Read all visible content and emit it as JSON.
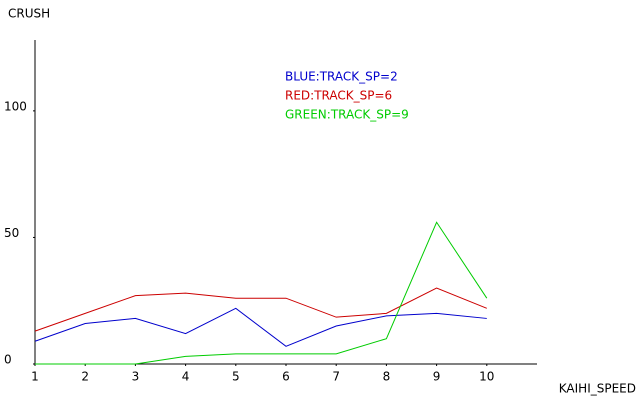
{
  "chart_data": {
    "type": "line",
    "y_label": "CRUSH",
    "x_label": "KAIHI_SPEED",
    "x": [
      1,
      2,
      3,
      4,
      5,
      6,
      7,
      8,
      9,
      10
    ],
    "series": [
      {
        "name": "BLUE:TRACK_SP=2",
        "color": "#0000cc",
        "values": [
          9,
          16,
          18,
          12,
          22,
          7,
          15,
          19,
          20,
          18
        ]
      },
      {
        "name": "RED:TRACK_SP=6",
        "color": "#cc0000",
        "values": [
          13,
          20,
          27,
          28,
          26,
          26,
          18.5,
          20,
          30,
          22
        ]
      },
      {
        "name": "GREEN:TRACK_SP=9",
        "color": "#00cc00",
        "values": [
          0,
          0,
          0,
          3,
          4,
          4,
          4,
          10,
          56,
          26
        ]
      }
    ],
    "xlim": [
      1,
      11
    ],
    "xticks": [
      1,
      2,
      3,
      4,
      5,
      6,
      7,
      8,
      9,
      10
    ],
    "ylim": [
      0,
      128
    ],
    "yticks": [
      0,
      50,
      100
    ],
    "grid": false
  }
}
